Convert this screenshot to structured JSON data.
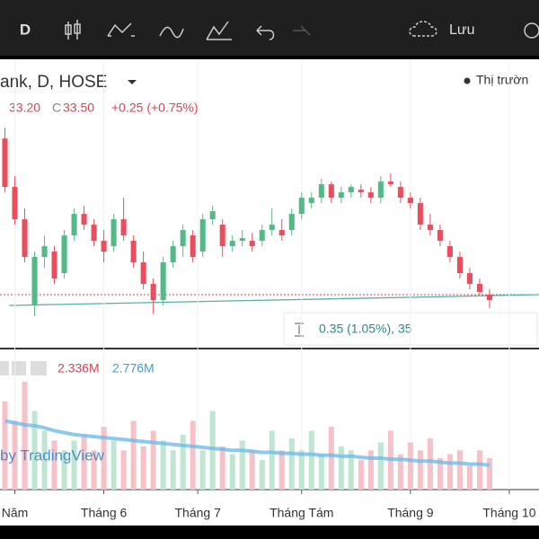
{
  "toolbar": {
    "interval": "D",
    "save": "Lưu"
  },
  "chart_data": {
    "type": "candlestick",
    "symbol": "ank, D, HOSE",
    "status": "Thị trườn",
    "legend": [
      "33.20",
      "C",
      "33.50",
      "+0.25 (+0.75%)"
    ],
    "measure": "0.35 (1.05%), 35",
    "watermark": "by TradingView",
    "up_color": "#53b987",
    "down_color": "#eb4d5c",
    "x": [
      0,
      1,
      2,
      3,
      4,
      5,
      6,
      7,
      8,
      9,
      10,
      11,
      12,
      13,
      14,
      15,
      16,
      17,
      18,
      19,
      20,
      21,
      22,
      23,
      24,
      25,
      26,
      27,
      28,
      29,
      30,
      31,
      32,
      33,
      34,
      35,
      36,
      37,
      38,
      39,
      40,
      41,
      42,
      43,
      44,
      45,
      46,
      47,
      48,
      49
    ],
    "open": [
      36.2,
      35.3,
      34.7,
      33.1,
      34.0,
      34.1,
      33.7,
      34.4,
      34.8,
      34.6,
      34.3,
      34.2,
      34.7,
      34.3,
      33.9,
      33.5,
      33.2,
      33.9,
      34.2,
      34.4,
      34.1,
      34.7,
      34.6,
      34.2,
      34.3,
      34.3,
      34.3,
      34.5,
      34.5,
      34.5,
      34.8,
      35.0,
      35.1,
      35.35,
      35.1,
      35.2,
      35.25,
      35.2,
      35.1,
      35.4,
      35.3,
      35.1,
      35.0,
      34.6,
      34.5,
      34.2,
      34.0,
      33.7,
      33.5,
      33.3
    ],
    "high": [
      36.4,
      35.5,
      34.9,
      34.1,
      34.4,
      34.2,
      34.5,
      34.9,
      34.95,
      34.7,
      34.5,
      34.8,
      35.1,
      34.4,
      34.1,
      33.6,
      34.0,
      34.3,
      34.6,
      34.5,
      34.8,
      34.95,
      34.7,
      34.4,
      34.5,
      34.45,
      34.6,
      34.9,
      34.7,
      34.9,
      35.2,
      35.2,
      35.45,
      35.4,
      35.3,
      35.35,
      35.35,
      35.3,
      35.5,
      35.55,
      35.4,
      35.2,
      35.1,
      34.8,
      34.6,
      34.3,
      34.1,
      33.8,
      33.6,
      33.4
    ],
    "low": [
      35.2,
      34.6,
      33.9,
      32.9,
      33.8,
      33.5,
      33.6,
      34.3,
      34.5,
      34.2,
      33.9,
      34.1,
      34.3,
      33.8,
      33.4,
      32.95,
      33.1,
      33.8,
      34.0,
      33.9,
      34.0,
      34.6,
      34.0,
      34.1,
      34.2,
      34.1,
      34.2,
      34.4,
      34.3,
      34.4,
      34.7,
      34.9,
      35.0,
      35.0,
      35.0,
      35.1,
      35.1,
      35.0,
      35.0,
      35.3,
      35.0,
      34.9,
      34.5,
      34.4,
      34.2,
      33.9,
      33.6,
      33.4,
      33.3,
      33.05
    ],
    "close": [
      35.3,
      34.7,
      34.0,
      34.0,
      34.2,
      33.6,
      34.4,
      34.8,
      34.6,
      34.3,
      34.1,
      34.7,
      34.4,
      33.9,
      33.5,
      33.2,
      33.9,
      34.2,
      34.5,
      34.0,
      34.7,
      34.85,
      34.2,
      34.3,
      34.35,
      34.2,
      34.5,
      34.6,
      34.4,
      34.8,
      35.1,
      35.1,
      35.35,
      35.1,
      35.2,
      35.3,
      35.2,
      35.1,
      35.4,
      35.35,
      35.1,
      35.0,
      34.6,
      34.5,
      34.3,
      34.0,
      33.7,
      33.5,
      33.35,
      33.2
    ],
    "xlim": [
      -0.5,
      54
    ],
    "ylim": [
      32.3,
      37.67
    ],
    "xticks": [
      {
        "value": 1,
        "label": "Năm"
      },
      {
        "value": 10,
        "label": "Tháng 6"
      },
      {
        "value": 19.5,
        "label": "Tháng 7"
      },
      {
        "value": 30,
        "label": "Tháng Tám"
      },
      {
        "value": 41,
        "label": "Tháng 9"
      },
      {
        "value": 51,
        "label": "Tháng 10"
      }
    ],
    "volume": {
      "legend": [
        "2.336M",
        "2.776M"
      ],
      "ylim": [
        0,
        7
      ],
      "up_color": "#bfe6d1",
      "down_color": "#f6c1c7",
      "ma_color": "#6fbbea",
      "values": [
        4.5,
        3.5,
        5.5,
        4.0,
        3.0,
        2.5,
        2.0,
        2.5,
        2.8,
        2.0,
        3.2,
        2.5,
        2.0,
        3.5,
        2.2,
        3.0,
        2.5,
        2.0,
        2.8,
        3.5,
        2.0,
        4.0,
        2.2,
        1.8,
        2.5,
        2.0,
        1.5,
        3.0,
        2.0,
        2.6,
        2.0,
        3.0,
        1.8,
        3.2,
        2.2,
        2.0,
        1.5,
        2.0,
        2.4,
        3.0,
        1.8,
        2.4,
        2.0,
        2.6,
        1.6,
        1.8,
        2.0,
        1.2,
        2.0,
        1.6
      ],
      "ma": [
        3.5,
        3.4,
        3.3,
        3.25,
        3.15,
        3.0,
        2.9,
        2.8,
        2.75,
        2.7,
        2.65,
        2.6,
        2.55,
        2.5,
        2.45,
        2.4,
        2.35,
        2.3,
        2.25,
        2.2,
        2.15,
        2.1,
        2.05,
        2.0,
        2.0,
        1.95,
        1.9,
        1.9,
        1.85,
        1.85,
        1.8,
        1.8,
        1.75,
        1.75,
        1.7,
        1.7,
        1.65,
        1.6,
        1.6,
        1.55,
        1.55,
        1.5,
        1.45,
        1.45,
        1.4,
        1.35,
        1.35,
        1.3,
        1.3,
        1.25
      ]
    }
  }
}
